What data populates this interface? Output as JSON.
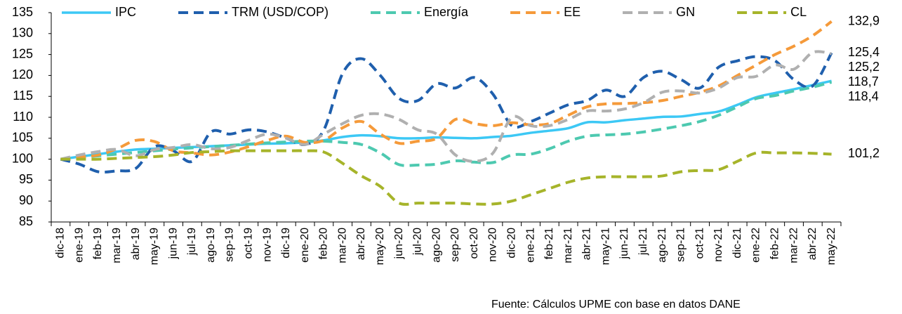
{
  "chart_data": {
    "type": "line",
    "categories": [
      "dic-18",
      "ene-19",
      "feb-19",
      "mar-19",
      "abr-19",
      "may-19",
      "jun-19",
      "jul-19",
      "ago-19",
      "sep-19",
      "oct-19",
      "nov-19",
      "dic-19",
      "ene-20",
      "feb-20",
      "mar-20",
      "abr-20",
      "may-20",
      "jun-20",
      "jul-20",
      "ago-20",
      "sep-20",
      "oct-20",
      "nov-20",
      "dic-20",
      "ene-21",
      "feb-21",
      "mar-21",
      "abr-21",
      "may-21",
      "jun-21",
      "jul-21",
      "ago-21",
      "sep-21",
      "oct-21",
      "nov-21",
      "dic-21",
      "ene-22",
      "feb-22",
      "mar-22",
      "abr-22",
      "may-22"
    ],
    "ylim": [
      85,
      135
    ],
    "yticks": [
      85,
      90,
      95,
      100,
      105,
      110,
      115,
      120,
      125,
      130,
      135
    ],
    "legend": "top",
    "source": "Fuente:   Cálculos UPME con base en datos DANE",
    "series": [
      {
        "name": "IPC",
        "color": "#3cc8f5",
        "dash": false,
        "values": [
          100,
          100.6,
          101.2,
          101.8,
          102.3,
          102.5,
          102.7,
          102.9,
          103.1,
          103.3,
          103.5,
          103.7,
          103.8,
          104.0,
          104.5,
          105.3,
          105.7,
          105.5,
          105.0,
          105.0,
          105.2,
          105.1,
          105.0,
          105.3,
          105.6,
          106.3,
          106.8,
          107.4,
          108.8,
          108.8,
          109.3,
          109.7,
          110.1,
          110.2,
          110.8,
          111.4,
          113.0,
          114.8,
          115.8,
          116.7,
          117.7,
          118.7
        ],
        "value_labels": [
          null,
          null,
          null,
          null,
          null,
          null,
          null,
          null,
          null,
          null,
          null,
          null,
          null,
          null,
          null,
          null,
          null,
          null,
          null,
          null,
          null,
          null,
          null,
          null,
          null,
          null,
          null,
          null,
          null,
          null,
          null,
          null,
          null,
          null,
          null,
          null,
          null,
          null,
          null,
          null,
          null,
          "118,7"
        ]
      },
      {
        "name": "TRM (USD/COP)",
        "color": "#1f5fad",
        "dash": true,
        "values": [
          100,
          98.8,
          97.0,
          97.2,
          97.8,
          103.0,
          102.0,
          99.5,
          106.5,
          106.0,
          107.0,
          106.5,
          105.0,
          103.5,
          107.0,
          120.5,
          124.0,
          120.0,
          114.5,
          114.0,
          118.0,
          117.0,
          119.5,
          115.5,
          108.0,
          109.0,
          111.0,
          113.0,
          114.0,
          116.5,
          115.0,
          119.5,
          121.0,
          119.0,
          117.0,
          122.0,
          123.5,
          124.5,
          123.5,
          119.0,
          117.5,
          125.4
        ],
        "value_labels": [
          null,
          null,
          null,
          null,
          null,
          null,
          null,
          null,
          null,
          null,
          null,
          null,
          null,
          null,
          null,
          null,
          null,
          null,
          null,
          null,
          null,
          null,
          null,
          null,
          null,
          null,
          null,
          null,
          null,
          null,
          null,
          null,
          null,
          null,
          null,
          null,
          null,
          null,
          null,
          null,
          null,
          "125,4"
        ]
      },
      {
        "name": "Energía",
        "color": "#4dc9b0",
        "dash": true,
        "values": [
          100,
          100.4,
          100.8,
          101.2,
          101.6,
          102.0,
          102.4,
          102.7,
          103.0,
          103.3,
          103.6,
          103.9,
          104.1,
          104.3,
          104.3,
          104.0,
          103.5,
          101.5,
          98.7,
          98.6,
          98.8,
          99.6,
          99.3,
          99.2,
          101.0,
          101.2,
          102.5,
          104.3,
          105.5,
          105.8,
          106.0,
          106.5,
          107.2,
          108.0,
          109.0,
          110.5,
          112.5,
          114.5,
          115.2,
          116.3,
          117.2,
          118.4
        ],
        "value_labels": [
          null,
          null,
          null,
          null,
          null,
          null,
          null,
          null,
          null,
          null,
          null,
          null,
          null,
          null,
          null,
          null,
          null,
          null,
          null,
          null,
          null,
          null,
          null,
          null,
          null,
          null,
          null,
          null,
          null,
          null,
          null,
          null,
          null,
          null,
          null,
          null,
          null,
          null,
          null,
          null,
          null,
          "118,4"
        ]
      },
      {
        "name": "EE",
        "color": "#f59a3a",
        "dash": true,
        "values": [
          100,
          100.5,
          101.0,
          102.5,
          104.5,
          104.2,
          102.0,
          101.5,
          101.0,
          101.7,
          103.0,
          104.5,
          105.5,
          104.0,
          104.5,
          107.5,
          109.0,
          106.0,
          103.8,
          104.3,
          105.0,
          109.5,
          108.5,
          108.0,
          108.7,
          108.2,
          108.5,
          110.5,
          112.5,
          113.2,
          113.3,
          113.5,
          114.0,
          115.0,
          116.0,
          117.5,
          120.0,
          122.5,
          125.0,
          127.0,
          129.5,
          132.9
        ],
        "value_labels": [
          null,
          null,
          null,
          null,
          null,
          null,
          null,
          null,
          null,
          null,
          null,
          null,
          null,
          null,
          null,
          null,
          null,
          null,
          null,
          null,
          null,
          null,
          null,
          null,
          null,
          null,
          null,
          null,
          null,
          null,
          null,
          null,
          null,
          null,
          null,
          null,
          null,
          null,
          null,
          null,
          null,
          "132,9"
        ]
      },
      {
        "name": "GN",
        "color": "#b0b0b0",
        "dash": true,
        "values": [
          100,
          101.0,
          101.8,
          102.3,
          100.8,
          102.3,
          102.8,
          103.5,
          102.5,
          102.8,
          104.5,
          106.0,
          105.0,
          103.5,
          106.0,
          108.5,
          110.5,
          110.8,
          109.5,
          107.0,
          106.0,
          101.0,
          99.5,
          101.5,
          110.0,
          108.0,
          108.0,
          109.5,
          111.5,
          111.5,
          112.0,
          113.5,
          116.0,
          116.3,
          115.8,
          117.0,
          119.5,
          119.8,
          122.5,
          121.5,
          125.5,
          125.2
        ],
        "value_labels": [
          null,
          null,
          null,
          null,
          null,
          null,
          null,
          null,
          null,
          null,
          null,
          null,
          null,
          null,
          null,
          null,
          null,
          null,
          null,
          null,
          null,
          null,
          null,
          null,
          null,
          null,
          null,
          null,
          null,
          null,
          null,
          null,
          null,
          null,
          null,
          null,
          null,
          null,
          null,
          null,
          null,
          "125,2"
        ]
      },
      {
        "name": "CL",
        "color": "#a6b42a",
        "dash": true,
        "values": [
          100,
          100.0,
          100.0,
          100.2,
          100.4,
          100.6,
          101.0,
          101.6,
          101.8,
          102.0,
          102.0,
          102.0,
          102.0,
          102.0,
          101.7,
          99.0,
          96.0,
          93.5,
          89.5,
          89.5,
          89.5,
          89.5,
          89.3,
          89.3,
          90.0,
          91.5,
          93.0,
          94.5,
          95.5,
          95.8,
          95.8,
          95.8,
          96.0,
          97.0,
          97.3,
          97.5,
          99.5,
          101.5,
          101.5,
          101.5,
          101.4,
          101.2
        ],
        "value_labels": [
          null,
          null,
          null,
          null,
          null,
          null,
          null,
          null,
          null,
          null,
          null,
          null,
          null,
          null,
          null,
          null,
          null,
          null,
          null,
          null,
          null,
          null,
          null,
          null,
          null,
          null,
          null,
          null,
          null,
          null,
          null,
          null,
          null,
          null,
          null,
          null,
          null,
          null,
          null,
          null,
          null,
          "101,2"
        ]
      }
    ]
  }
}
